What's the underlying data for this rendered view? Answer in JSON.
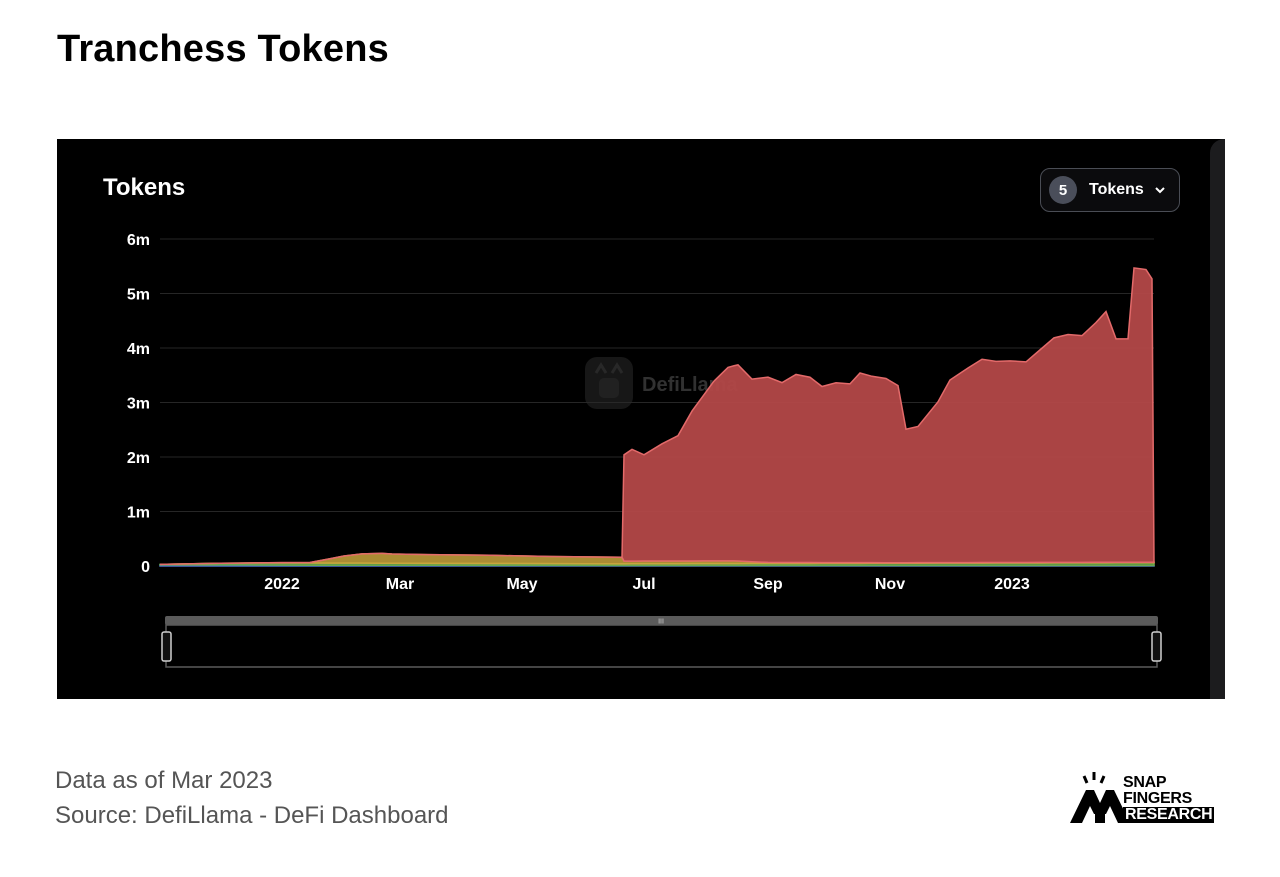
{
  "page": {
    "title": "Tranchess Tokens",
    "footer_date": "Data as of Mar 2023",
    "footer_source": "Source: DefiLlama - DeFi Dashboard"
  },
  "panel": {
    "heading": "Tokens",
    "watermark": "DefiLlama",
    "token_selector": {
      "count": "5",
      "label": "Tokens",
      "icon": "chevron-down-icon"
    }
  },
  "logo": {
    "lines": [
      "SNAP",
      "FINGERS",
      "RESEARCH"
    ],
    "icon": "snap-fingers-logo-icon"
  },
  "colors": {
    "background": "#000000",
    "red_series": "#b34848",
    "red_stroke": "#e36a6a",
    "yellow_series": "#c9a53c",
    "green_series": "#6aa84f",
    "blue_series": "#4a6fd0",
    "grid": "#262626",
    "axis_text": "#ffffff"
  },
  "chart_data": {
    "type": "area",
    "stacked": true,
    "title": "Tokens",
    "xlabel": "",
    "ylabel": "",
    "ylim": [
      0,
      6000000
    ],
    "xlim": [
      "2021-11-01",
      "2023-03-13"
    ],
    "y_ticks": [
      {
        "value": 0,
        "label": "0"
      },
      {
        "value": 1000000,
        "label": "1m"
      },
      {
        "value": 2000000,
        "label": "2m"
      },
      {
        "value": 3000000,
        "label": "3m"
      },
      {
        "value": 4000000,
        "label": "4m"
      },
      {
        "value": 5000000,
        "label": "5m"
      },
      {
        "value": 6000000,
        "label": "6m"
      }
    ],
    "x_ticks": [
      {
        "date": "2022-01-01",
        "label": "2022"
      },
      {
        "date": "2022-03-01",
        "label": "Mar"
      },
      {
        "date": "2022-05-01",
        "label": "May"
      },
      {
        "date": "2022-07-01",
        "label": "Jul"
      },
      {
        "date": "2022-09-01",
        "label": "Sep"
      },
      {
        "date": "2022-11-01",
        "label": "Nov"
      },
      {
        "date": "2023-01-01",
        "label": "2023"
      }
    ],
    "grid": true,
    "series": [
      {
        "color": "#4a6fd0",
        "points": [
          [
            "2021-11-01",
            20000
          ],
          [
            "2021-12-15",
            20000
          ],
          [
            "2022-01-01",
            15000
          ],
          [
            "2022-06-20",
            10000
          ],
          [
            "2023-03-13",
            10000
          ]
        ]
      },
      {
        "color": "#6aa84f",
        "points": [
          [
            "2021-11-01",
            10000
          ],
          [
            "2021-12-01",
            30000
          ],
          [
            "2022-01-01",
            40000
          ],
          [
            "2022-01-15",
            40000
          ],
          [
            "2022-06-20",
            30000
          ],
          [
            "2022-06-21",
            30000
          ],
          [
            "2023-03-13",
            50000
          ]
        ]
      },
      {
        "color": "#c9a53c",
        "points": [
          [
            "2021-11-01",
            0
          ],
          [
            "2021-12-10",
            0
          ],
          [
            "2022-01-15",
            10000
          ],
          [
            "2022-01-25",
            80000
          ],
          [
            "2022-02-01",
            130000
          ],
          [
            "2022-02-10",
            170000
          ],
          [
            "2022-02-20",
            180000
          ],
          [
            "2022-02-25",
            170000
          ],
          [
            "2022-03-15",
            160000
          ],
          [
            "2022-04-15",
            150000
          ],
          [
            "2022-05-15",
            130000
          ],
          [
            "2022-06-20",
            120000
          ],
          [
            "2022-06-21",
            50000
          ],
          [
            "2022-08-15",
            50000
          ],
          [
            "2022-09-01",
            20000
          ],
          [
            "2022-11-01",
            10000
          ],
          [
            "2023-03-13",
            10000
          ]
        ]
      },
      {
        "color": "#b34848",
        "points": [
          [
            "2021-11-01",
            0
          ],
          [
            "2022-06-20",
            0
          ],
          [
            "2022-06-21",
            1950000
          ],
          [
            "2022-06-25",
            2050000
          ],
          [
            "2022-07-01",
            1950000
          ],
          [
            "2022-07-10",
            2150000
          ],
          [
            "2022-07-18",
            2300000
          ],
          [
            "2022-07-25",
            2750000
          ],
          [
            "2022-07-31",
            3050000
          ],
          [
            "2022-08-05",
            3300000
          ],
          [
            "2022-08-12",
            3550000
          ],
          [
            "2022-08-17",
            3600000
          ],
          [
            "2022-08-24",
            3350000
          ],
          [
            "2022-09-01",
            3400000
          ],
          [
            "2022-09-08",
            3300000
          ],
          [
            "2022-09-15",
            3450000
          ],
          [
            "2022-09-22",
            3400000
          ],
          [
            "2022-09-28",
            3230000
          ],
          [
            "2022-10-05",
            3300000
          ],
          [
            "2022-10-12",
            3280000
          ],
          [
            "2022-10-17",
            3480000
          ],
          [
            "2022-10-23",
            3420000
          ],
          [
            "2022-10-30",
            3380000
          ],
          [
            "2022-11-05",
            3250000
          ],
          [
            "2022-11-09",
            2450000
          ],
          [
            "2022-11-15",
            2500000
          ],
          [
            "2022-11-25",
            2950000
          ],
          [
            "2022-12-01",
            3350000
          ],
          [
            "2022-12-10",
            3570000
          ],
          [
            "2022-12-17",
            3730000
          ],
          [
            "2022-12-24",
            3690000
          ],
          [
            "2022-12-31",
            3700000
          ],
          [
            "2023-01-08",
            3680000
          ],
          [
            "2023-01-15",
            3900000
          ],
          [
            "2023-01-22",
            4120000
          ],
          [
            "2023-01-29",
            4180000
          ],
          [
            "2023-02-05",
            4160000
          ],
          [
            "2023-02-12",
            4400000
          ],
          [
            "2023-02-17",
            4600000
          ],
          [
            "2023-02-22",
            4100000
          ],
          [
            "2023-02-28",
            4100000
          ],
          [
            "2023-03-03",
            5400000
          ],
          [
            "2023-03-09",
            5370000
          ],
          [
            "2023-03-12",
            5200000
          ],
          [
            "2023-03-13",
            0
          ]
        ]
      }
    ],
    "legend": "none"
  }
}
